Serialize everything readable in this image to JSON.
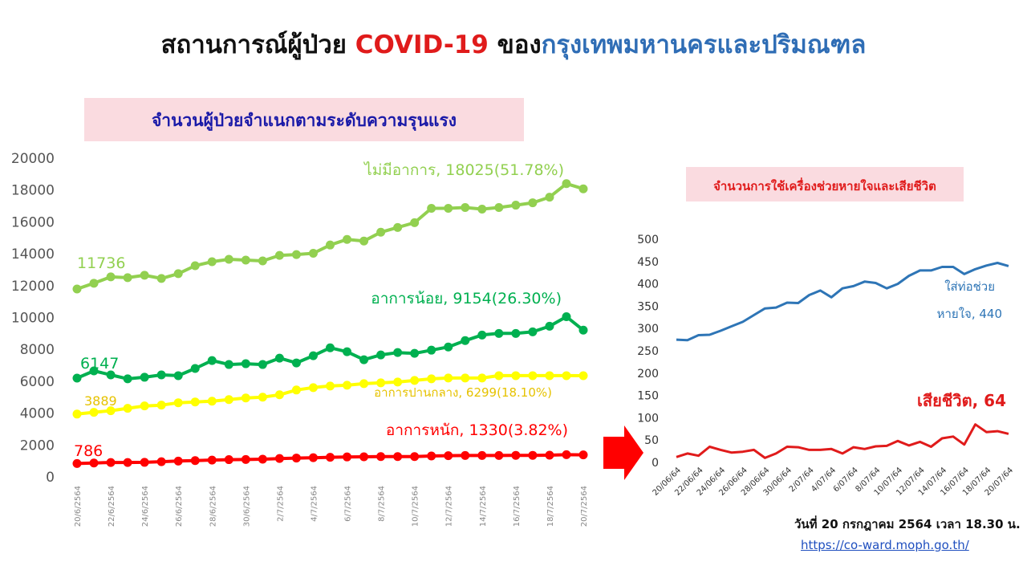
{
  "title": {
    "part1": "สถานการณ์ผู้ป่วย ",
    "part2": "COVID-19",
    "part3": " ของ",
    "part4": "กรุงเทพมหานครและปริมณฑล"
  },
  "footer": {
    "date": "วันที่ 20 กรกฎาคม 2564 เวลา 18.30 น.",
    "url": "https://co-ward.moph.go.th/"
  },
  "colors": {
    "asym": "#92d050",
    "mild": "#00b050",
    "moderate": "#ffff00",
    "severe": "#ff0000",
    "ventilator": "#2e75b6",
    "deaths": "#e01b1b"
  },
  "chart_data": [
    {
      "type": "line",
      "title": "จำนวนผู้ป่วยจำแนกตามระดับความรุนแรง",
      "ylim": [
        0,
        20000
      ],
      "yticks": [
        "0",
        "2000",
        "4000",
        "6000",
        "8000",
        "10000",
        "12000",
        "14000",
        "16000",
        "18000",
        "20000"
      ],
      "x": [
        "20/6/2564",
        "21/6/2564",
        "22/6/2564",
        "23/6/2564",
        "24/6/2564",
        "25/6/2564",
        "26/6/2564",
        "27/6/2564",
        "28/6/2564",
        "29/6/2564",
        "30/6/2564",
        "1/7/2564",
        "2/7/2564",
        "3/7/2564",
        "4/7/2564",
        "5/7/2564",
        "6/7/2564",
        "7/7/2564",
        "8/7/2564",
        "9/7/2564",
        "10/7/2564",
        "11/7/2564",
        "12/7/2564",
        "13/7/2564",
        "14/7/2564",
        "15/7/2564",
        "16/7/2564",
        "17/7/2564",
        "18/7/2564",
        "19/7/2564",
        "20/7/2564"
      ],
      "xtick_labels": [
        "20/6/2564",
        "22/6/2564",
        "24/6/2564",
        "26/6/2564",
        "28/6/2564",
        "30/6/2564",
        "2/7/2564",
        "4/7/2564",
        "6/7/2564",
        "8/7/2564",
        "10/7/2564",
        "12/7/2564",
        "14/7/2564",
        "16/7/2564",
        "18/7/2564",
        "20/7/2564"
      ],
      "series": [
        {
          "key": "asym",
          "end_label": "ไม่มีอาการ, 18025(51.78%)",
          "start_label": "11736",
          "values": [
            11736,
            12100,
            12500,
            12450,
            12600,
            12400,
            12700,
            13200,
            13450,
            13600,
            13550,
            13500,
            13850,
            13900,
            13980,
            14500,
            14850,
            14750,
            15300,
            15600,
            15900,
            16800,
            16800,
            16850,
            16750,
            16850,
            17000,
            17150,
            17500,
            18350,
            18025
          ]
        },
        {
          "key": "mild",
          "end_label": "อาการน้อย, 9154(26.30%)",
          "start_label": "6147",
          "values": [
            6147,
            6600,
            6350,
            6100,
            6200,
            6350,
            6300,
            6750,
            7250,
            7000,
            7050,
            7000,
            7400,
            7100,
            7550,
            8050,
            7800,
            7300,
            7600,
            7750,
            7700,
            7900,
            8100,
            8500,
            8850,
            8950,
            8950,
            9050,
            9400,
            10000,
            9154
          ]
        },
        {
          "key": "moderate",
          "end_label": "อาการปานกลาง, 6299(18.10%)",
          "start_label": "3889",
          "values": [
            3889,
            4000,
            4100,
            4250,
            4400,
            4450,
            4600,
            4650,
            4700,
            4800,
            4900,
            4950,
            5100,
            5400,
            5550,
            5650,
            5700,
            5800,
            5850,
            5900,
            6000,
            6100,
            6150,
            6150,
            6150,
            6300,
            6300,
            6300,
            6300,
            6300,
            6299
          ]
        },
        {
          "key": "severe",
          "end_label": "อาการหนัก, 1330(3.82%)",
          "start_label": "786",
          "values": [
            786,
            820,
            850,
            850,
            860,
            900,
            940,
            970,
            1000,
            1030,
            1040,
            1060,
            1100,
            1130,
            1150,
            1180,
            1200,
            1210,
            1220,
            1220,
            1220,
            1260,
            1280,
            1290,
            1290,
            1290,
            1300,
            1300,
            1310,
            1340,
            1330
          ]
        }
      ]
    },
    {
      "type": "line",
      "title": "จำนวนการใช้เครื่องช่วยหายใจและเสียชีวิต",
      "ylim": [
        0,
        500
      ],
      "yticks": [
        "0",
        "50",
        "100",
        "150",
        "200",
        "250",
        "300",
        "350",
        "400",
        "450",
        "500"
      ],
      "x": [
        "20/06/64",
        "21/06/64",
        "22/06/64",
        "23/06/64",
        "24/06/64",
        "25/06/64",
        "26/06/64",
        "27/06/64",
        "28/06/64",
        "29/06/64",
        "30/06/64",
        "1/07/64",
        "2/07/64",
        "3/07/64",
        "4/07/64",
        "5/07/64",
        "6/07/64",
        "7/07/64",
        "8/07/64",
        "9/07/64",
        "10/07/64",
        "11/07/64",
        "12/07/64",
        "13/07/64",
        "14/07/64",
        "15/07/64",
        "16/07/64",
        "17/07/64",
        "18/07/64",
        "19/07/64",
        "20/07/64"
      ],
      "xtick_labels": [
        "20/06/64",
        "22/06/64",
        "24/06/64",
        "26/06/64",
        "28/06/64",
        "30/06/64",
        "2/07/64",
        "4/07/64",
        "6/07/64",
        "8/07/64",
        "10/07/64",
        "12/07/64",
        "14/07/64",
        "16/07/64",
        "18/07/64",
        "20/07/64"
      ],
      "series": [
        {
          "key": "ventilator",
          "label_line1": "ใส่ท่อช่วย",
          "label_line2": "หายใจ, 440",
          "values": [
            275,
            274,
            285,
            286,
            295,
            305,
            315,
            330,
            345,
            347,
            358,
            357,
            375,
            385,
            370,
            390,
            395,
            405,
            402,
            390,
            400,
            418,
            430,
            430,
            438,
            438,
            422,
            433,
            441,
            447,
            440
          ]
        },
        {
          "key": "deaths",
          "end_label": "เสียชีวิต, 64",
          "values": [
            12,
            20,
            15,
            35,
            28,
            22,
            24,
            28,
            10,
            20,
            35,
            34,
            28,
            28,
            30,
            20,
            34,
            30,
            36,
            37,
            48,
            38,
            46,
            35,
            54,
            58,
            40,
            85,
            68,
            70,
            64
          ]
        }
      ]
    }
  ]
}
